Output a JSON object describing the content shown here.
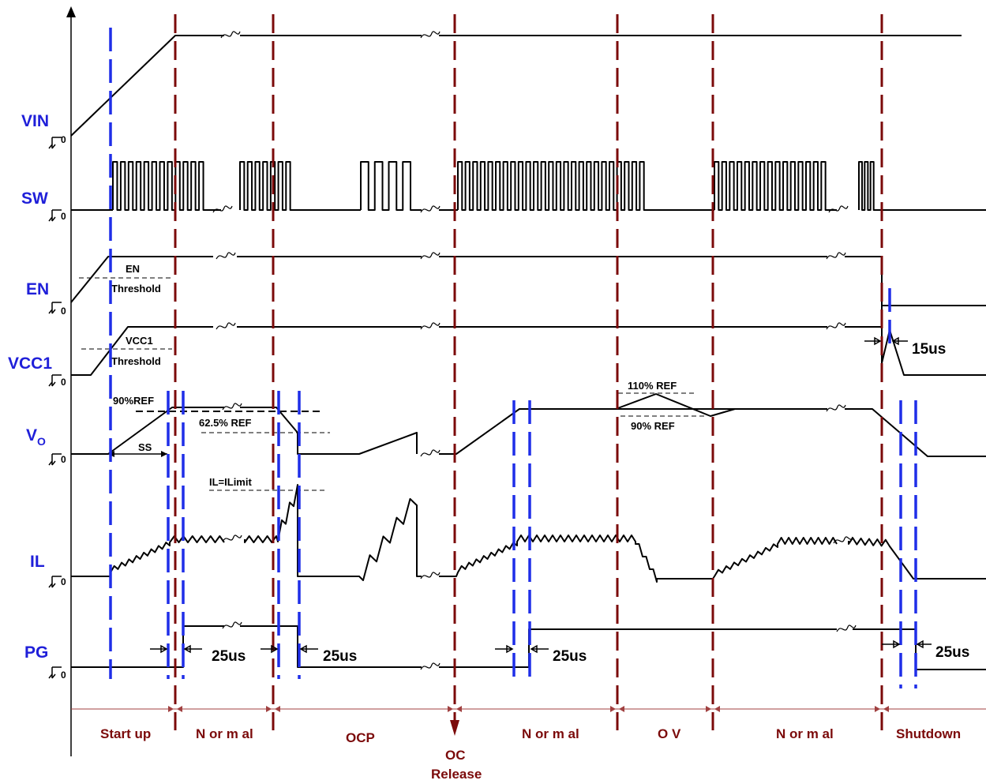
{
  "signals": {
    "vin": "VIN",
    "sw": "SW",
    "en": "EN",
    "vcc1": "VCC1",
    "vo_main": "V",
    "vo_sub": "O",
    "il": "IL",
    "pg": "PG",
    "zero": "0"
  },
  "annotations": {
    "en_label": "EN",
    "threshold": "Threshold",
    "vcc1_label": "VCC1",
    "ref90_a": "90%REF",
    "ref62": "62.5% REF",
    "ss": "SS",
    "ref110": "110% REF",
    "ref90_b": "90% REF",
    "ilimit": "IL=ILimit",
    "t15": "15us",
    "t25": "25us"
  },
  "phases": [
    "Start up",
    "N or m al",
    "OCP",
    "N or m al",
    "O V",
    "N or m al",
    "Shutdown"
  ],
  "oc_release": [
    "OC",
    "Release"
  ],
  "colors": {
    "signal_label": "#1f1fd9",
    "blue_markers": "#1f2ee8",
    "red_markers": "#7b0a0a"
  }
}
